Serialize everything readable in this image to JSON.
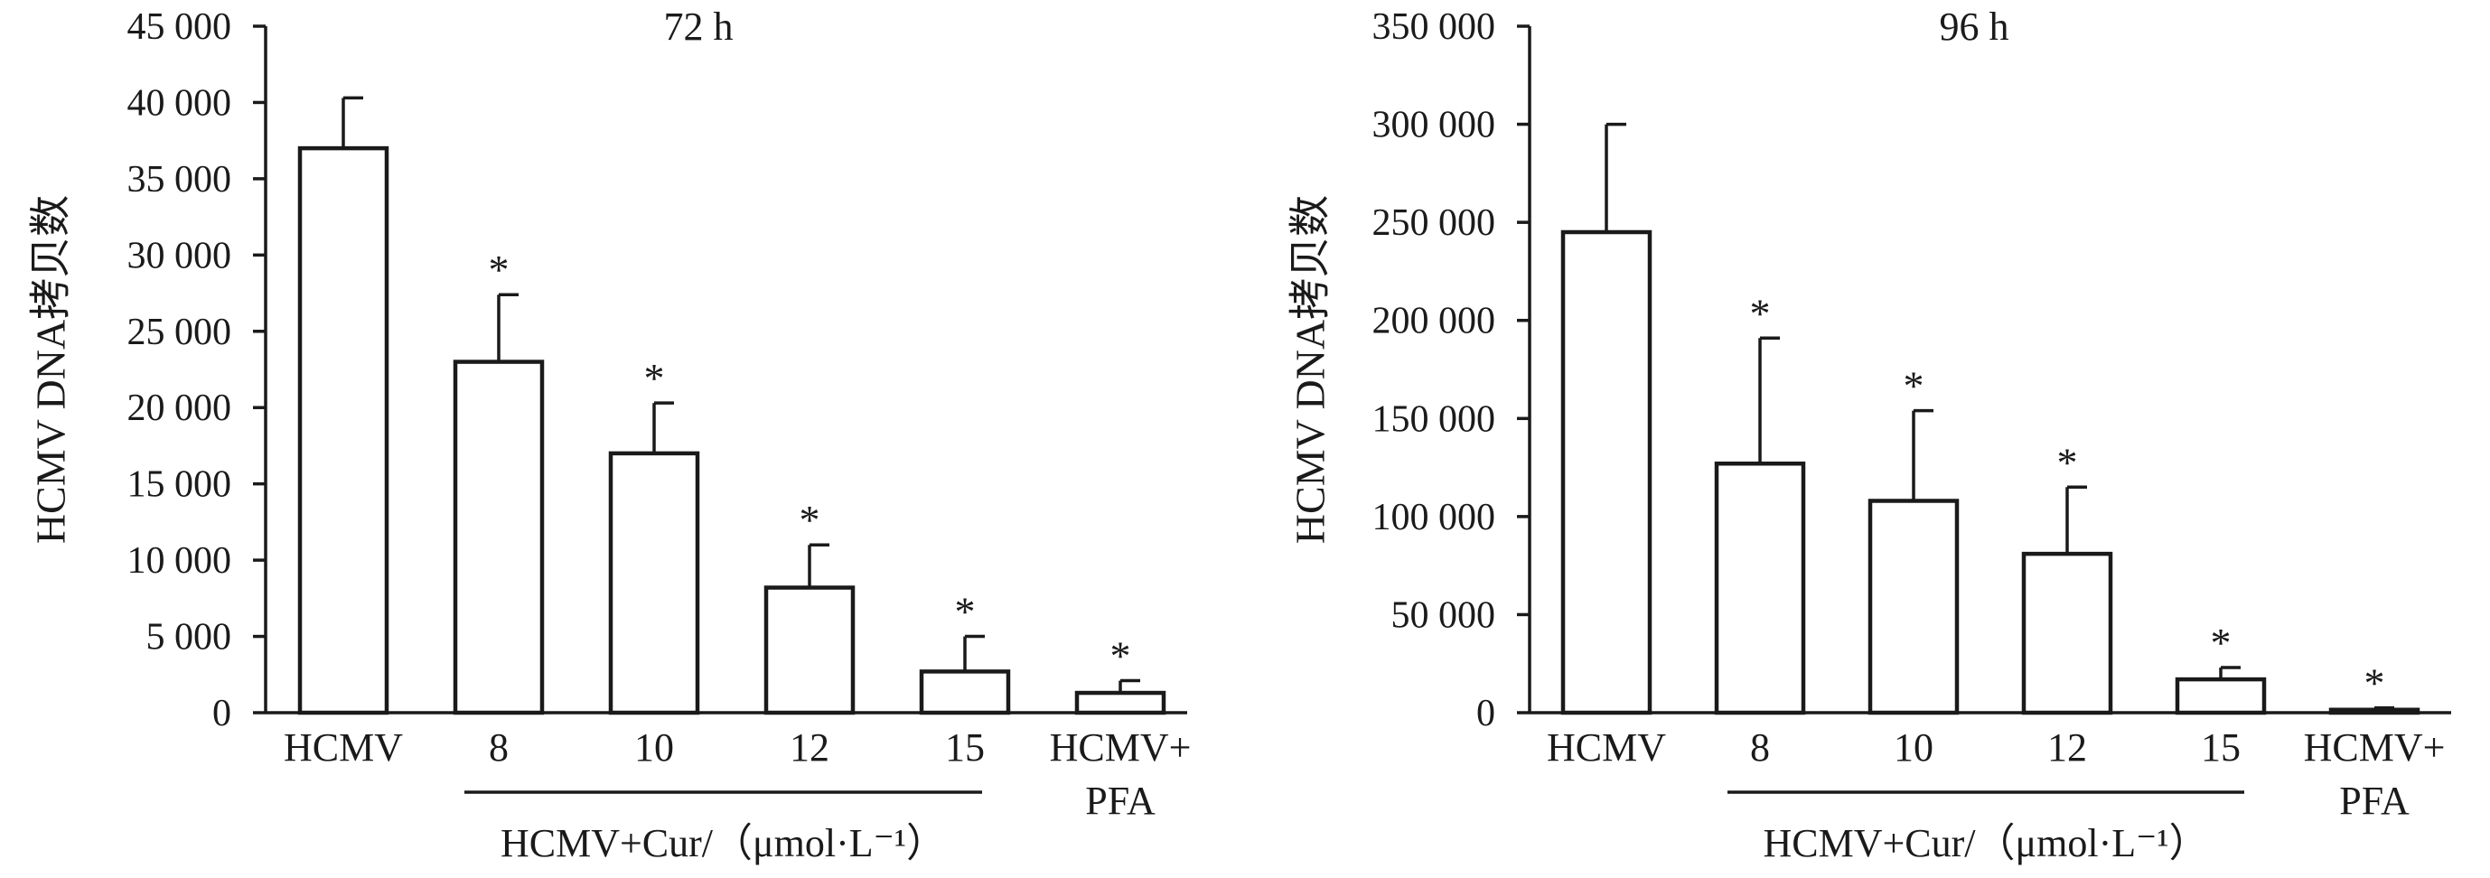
{
  "chart_data": [
    {
      "type": "bar",
      "title": "72 h",
      "ylabel": "HCMV DNA拷贝数",
      "ylim": [
        0,
        45000
      ],
      "yticks": [
        0,
        5000,
        10000,
        15000,
        20000,
        25000,
        30000,
        35000,
        40000,
        45000
      ],
      "ytick_labels": [
        "0",
        "5 000",
        "10 000",
        "15 000",
        "20 000",
        "25 000",
        "30 000",
        "35 000",
        "40 000",
        "45 000"
      ],
      "categories": [
        [
          "HCMV"
        ],
        [
          "8"
        ],
        [
          "10"
        ],
        [
          "12"
        ],
        [
          "15"
        ],
        [
          "HCMV+",
          "PFA"
        ]
      ],
      "values": [
        37000,
        23000,
        17000,
        8200,
        2700,
        1300
      ],
      "errors": [
        3300,
        4400,
        3300,
        2800,
        2300,
        800
      ],
      "significance": [
        "",
        "*",
        "*",
        "*",
        "*",
        "*"
      ],
      "group_label": "HCMV+Cur/（μmol·L⁻¹）",
      "group_range": [
        1,
        4
      ],
      "grid": false
    },
    {
      "type": "bar",
      "title": "96 h",
      "ylabel": "HCMV DNA拷贝数",
      "ylim": [
        0,
        350000
      ],
      "yticks": [
        0,
        50000,
        100000,
        150000,
        200000,
        250000,
        300000,
        350000
      ],
      "ytick_labels": [
        "0",
        "50 000",
        "100 000",
        "150 000",
        "200 000",
        "250 000",
        "300 000",
        "350 000"
      ],
      "categories": [
        [
          "HCMV"
        ],
        [
          "8"
        ],
        [
          "10"
        ],
        [
          "12"
        ],
        [
          "15"
        ],
        [
          "HCMV+",
          "PFA"
        ]
      ],
      "values": [
        245000,
        127000,
        108000,
        81000,
        17000,
        1500
      ],
      "errors": [
        55000,
        64000,
        46000,
        34000,
        6000,
        1000
      ],
      "significance": [
        "",
        "*",
        "*",
        "*",
        "*",
        "*"
      ],
      "group_label": "HCMV+Cur/（μmol·L⁻¹）",
      "group_range": [
        1,
        4
      ],
      "grid": false
    }
  ]
}
